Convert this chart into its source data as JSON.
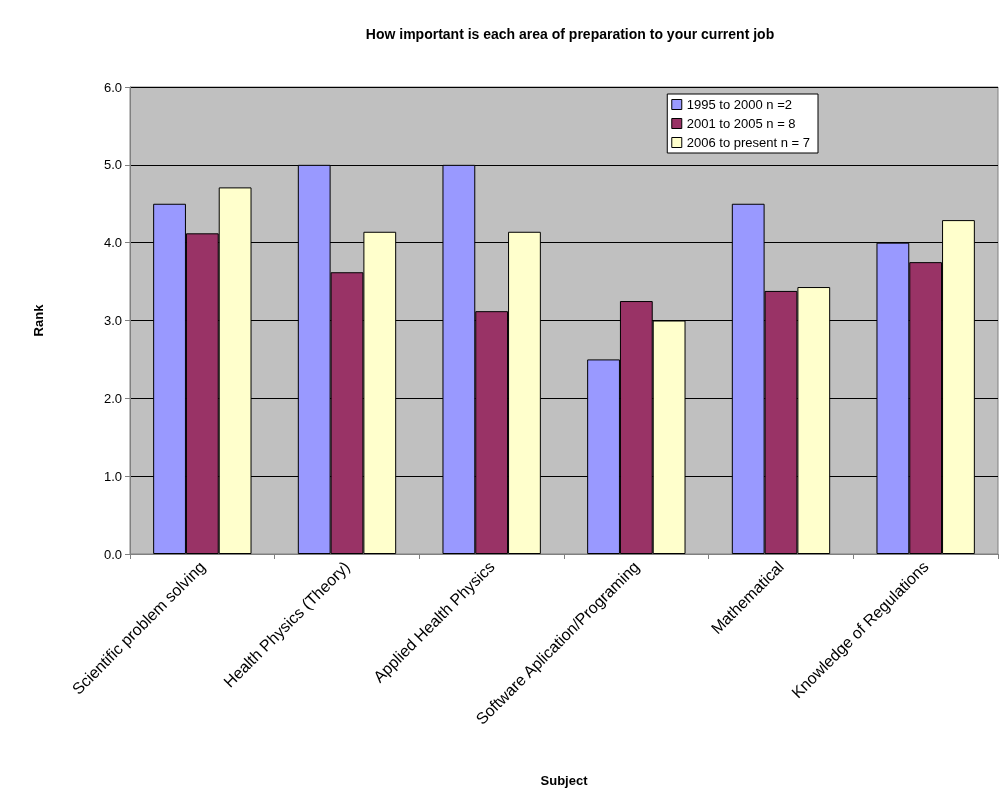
{
  "chart_data": {
    "type": "bar",
    "title": "How important is each area of preparation to your current job",
    "xlabel": "Subject",
    "ylabel": "Rank",
    "categories": [
      "Scientific problem solving",
      "Health Physics (Theory)",
      "Applied Health Physics",
      "Software Aplication/Programing",
      "Mathematical",
      "Knowledge of Regulations"
    ],
    "series": [
      {
        "name": "1995 to 2000 n =2",
        "color": "#9999ff",
        "values": [
          4.5,
          5.0,
          5.0,
          2.5,
          4.5,
          4.0
        ]
      },
      {
        "name": "2001 to 2005 n = 8",
        "color": "#993366",
        "values": [
          4.12,
          3.62,
          3.12,
          3.25,
          3.38,
          3.75
        ]
      },
      {
        "name": "2006 to present n = 7",
        "color": "#ffffcc",
        "values": [
          4.71,
          4.14,
          4.14,
          3.0,
          3.43,
          4.29
        ]
      }
    ],
    "ylim": [
      0,
      6
    ],
    "yticks": [
      {
        "value": 0,
        "label": "0.0"
      },
      {
        "value": 1,
        "label": "1.0"
      },
      {
        "value": 2,
        "label": "2.0"
      },
      {
        "value": 3,
        "label": "3.0"
      },
      {
        "value": 4,
        "label": "4.0"
      },
      {
        "value": 5,
        "label": "5.0"
      },
      {
        "value": 6,
        "label": "6.0"
      }
    ],
    "grid": "y",
    "legend": "top right"
  }
}
